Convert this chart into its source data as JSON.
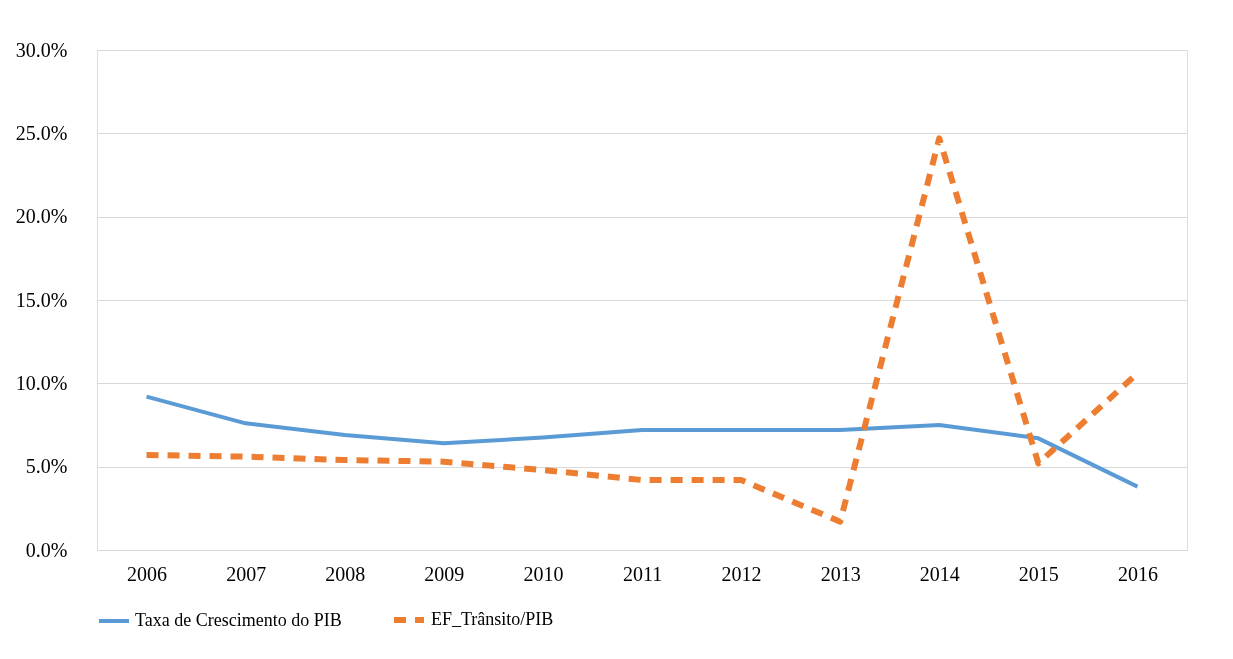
{
  "chart_data": {
    "type": "line",
    "categories": [
      "2006",
      "2007",
      "2008",
      "2009",
      "2010",
      "2011",
      "2012",
      "2013",
      "2014",
      "2015",
      "2016"
    ],
    "series": [
      {
        "name": "Taxa de Crescimento do PIB",
        "color": "#5b9bd5",
        "line_style": "solid",
        "values": [
          9.2,
          7.6,
          6.9,
          6.4,
          6.75,
          7.2,
          7.2,
          7.2,
          7.5,
          6.7,
          3.8
        ]
      },
      {
        "name": "EF_Trânsito/PIB",
        "color": "#ed7d31",
        "line_style": "dashed",
        "values": [
          5.7,
          5.6,
          5.4,
          5.3,
          4.8,
          4.2,
          4.2,
          1.7,
          24.7,
          5.2,
          10.6
        ]
      }
    ],
    "ylim": [
      0,
      30
    ],
    "yticks": [
      {
        "value": 0,
        "label": "0.0%"
      },
      {
        "value": 5,
        "label": "5.0%"
      },
      {
        "value": 10,
        "label": "10.0%"
      },
      {
        "value": 15,
        "label": "15.0%"
      },
      {
        "value": 20,
        "label": "20.0%"
      },
      {
        "value": 25,
        "label": "25.0%"
      },
      {
        "value": 30,
        "label": "30.0%"
      }
    ],
    "grid": "y",
    "legend": "bottom",
    "marker": "none"
  }
}
